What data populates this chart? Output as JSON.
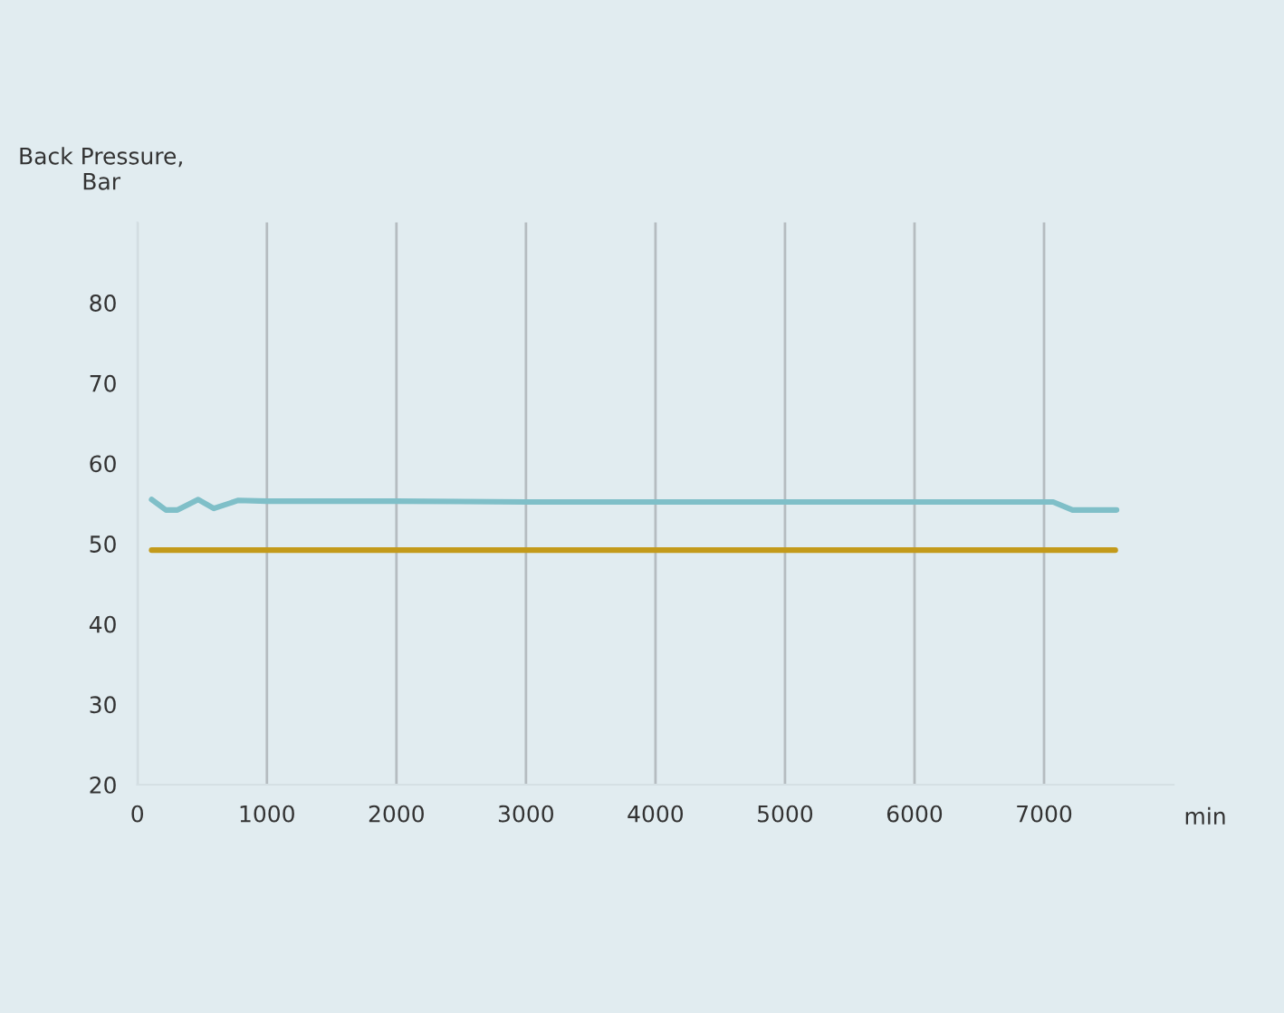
{
  "chart_data": {
    "type": "line",
    "ylabel": "Back Pressure,\nBar",
    "xlabel": "min",
    "series": [
      {
        "color": "#7fbfc8",
        "x": [
          110,
          220,
          310,
          470,
          590,
          780,
          1000,
          2000,
          3000,
          4000,
          5000,
          6000,
          7070,
          7220,
          7560
        ],
        "values": [
          55.5,
          54.2,
          54.2,
          55.5,
          54.4,
          55.4,
          55.3,
          55.3,
          55.2,
          55.2,
          55.2,
          55.2,
          55.2,
          54.2,
          54.2
        ]
      },
      {
        "color": "#c39a1a",
        "x": [
          110,
          7550
        ],
        "values": [
          49.2,
          49.2
        ]
      }
    ],
    "xlim": [
      0,
      8000
    ],
    "ylim": [
      20,
      90
    ],
    "xticks": [
      0,
      1000,
      2000,
      3000,
      4000,
      5000,
      6000,
      7000
    ],
    "yticks": [
      20,
      30,
      40,
      50,
      60,
      70,
      80
    ],
    "grid": "x"
  }
}
